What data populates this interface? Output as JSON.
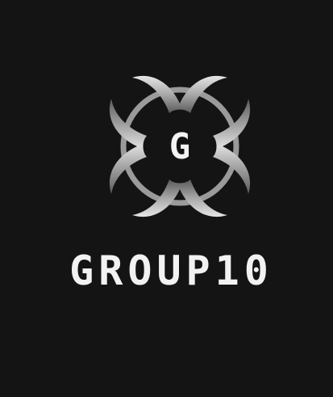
{
  "logo": {
    "emblem_letter": "G",
    "wordmark": "GROUP10",
    "icon": "ornate-g-emblem-icon"
  },
  "colors": {
    "background": "#141414",
    "metal_light": "#e6e6e6",
    "metal_mid": "#a8a8a8",
    "metal_dark": "#5a5a5a",
    "wordmark": "#f2f2f2"
  }
}
